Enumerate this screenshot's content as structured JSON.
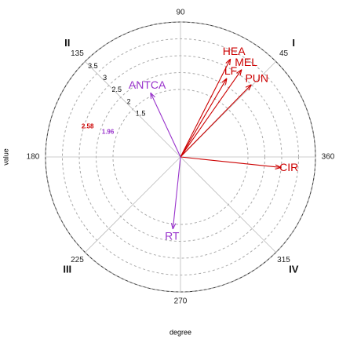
{
  "chart_data": {
    "type": "polar",
    "xlabel": "degree",
    "ylabel": "value",
    "angle_ticks": [
      45,
      90,
      135,
      180,
      225,
      270,
      315,
      360
    ],
    "quadrants": [
      {
        "label": "I",
        "angle": 45
      },
      {
        "label": "II",
        "angle": 135
      },
      {
        "label": "III",
        "angle": 225
      },
      {
        "label": "IV",
        "angle": 315
      }
    ],
    "rlim": [
      -0.5,
      3.5
    ],
    "rticks": [
      1.5,
      2,
      2.5,
      3,
      3.5
    ],
    "thresholds": [
      {
        "value": 2.58,
        "color": "#cc0000"
      },
      {
        "value": 1.96,
        "color": "#9933cc"
      }
    ],
    "vectors": [
      {
        "name": "HEA",
        "angle": 63,
        "value": 2.76,
        "color": "#cc0000"
      },
      {
        "name": "MEL",
        "angle": 55,
        "value": 2.66,
        "color": "#cc0000"
      },
      {
        "name": "LF",
        "angle": 59.5,
        "value": 2.2,
        "color": "#cc0000"
      },
      {
        "name": "PUN",
        "angle": 45.6,
        "value": 2.5,
        "color": "#cc0000"
      },
      {
        "name": "CIR",
        "angle": 354,
        "value": 2.5,
        "color": "#cc0000"
      },
      {
        "name": "ANTCA",
        "angle": 115,
        "value": 1.6,
        "color": "#9933cc"
      },
      {
        "name": "RT",
        "angle": 264,
        "value": 1.65,
        "color": "#9933cc"
      }
    ]
  }
}
